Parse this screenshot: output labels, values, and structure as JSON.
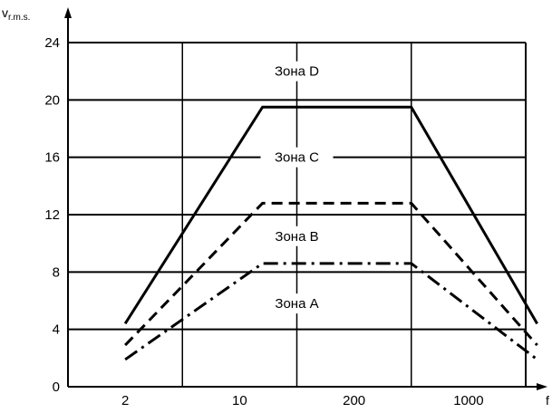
{
  "chart_data": {
    "type": "line",
    "ylabel": "v",
    "ylabel_sub": "r.m.s.",
    "xlabel": "f",
    "ylim": [
      0,
      24
    ],
    "yticks": [
      "0",
      "4",
      "8",
      "12",
      "16",
      "20",
      "24"
    ],
    "xticks": [
      "2",
      "10",
      "200",
      "1000"
    ],
    "grid": true,
    "zones": [
      {
        "label": "Зона D",
        "y": 22
      },
      {
        "label": "Зона C",
        "y": 16
      },
      {
        "label": "Зона B",
        "y": 10.5
      },
      {
        "label": "Зона A",
        "y": 5.8
      }
    ],
    "series": [
      {
        "style": "solid",
        "points": [
          [
            0,
            4.4
          ],
          [
            1.2,
            19.5
          ],
          [
            2.5,
            19.5
          ],
          [
            3.6,
            4.4
          ]
        ]
      },
      {
        "style": "dashed",
        "points": [
          [
            0,
            2.9
          ],
          [
            1.2,
            12.8
          ],
          [
            2.5,
            12.8
          ],
          [
            3.6,
            2.9
          ]
        ]
      },
      {
        "style": "dashdot",
        "points": [
          [
            0,
            1.9
          ],
          [
            1.2,
            8.6
          ],
          [
            2.5,
            8.6
          ],
          [
            3.6,
            1.9
          ]
        ]
      }
    ]
  }
}
